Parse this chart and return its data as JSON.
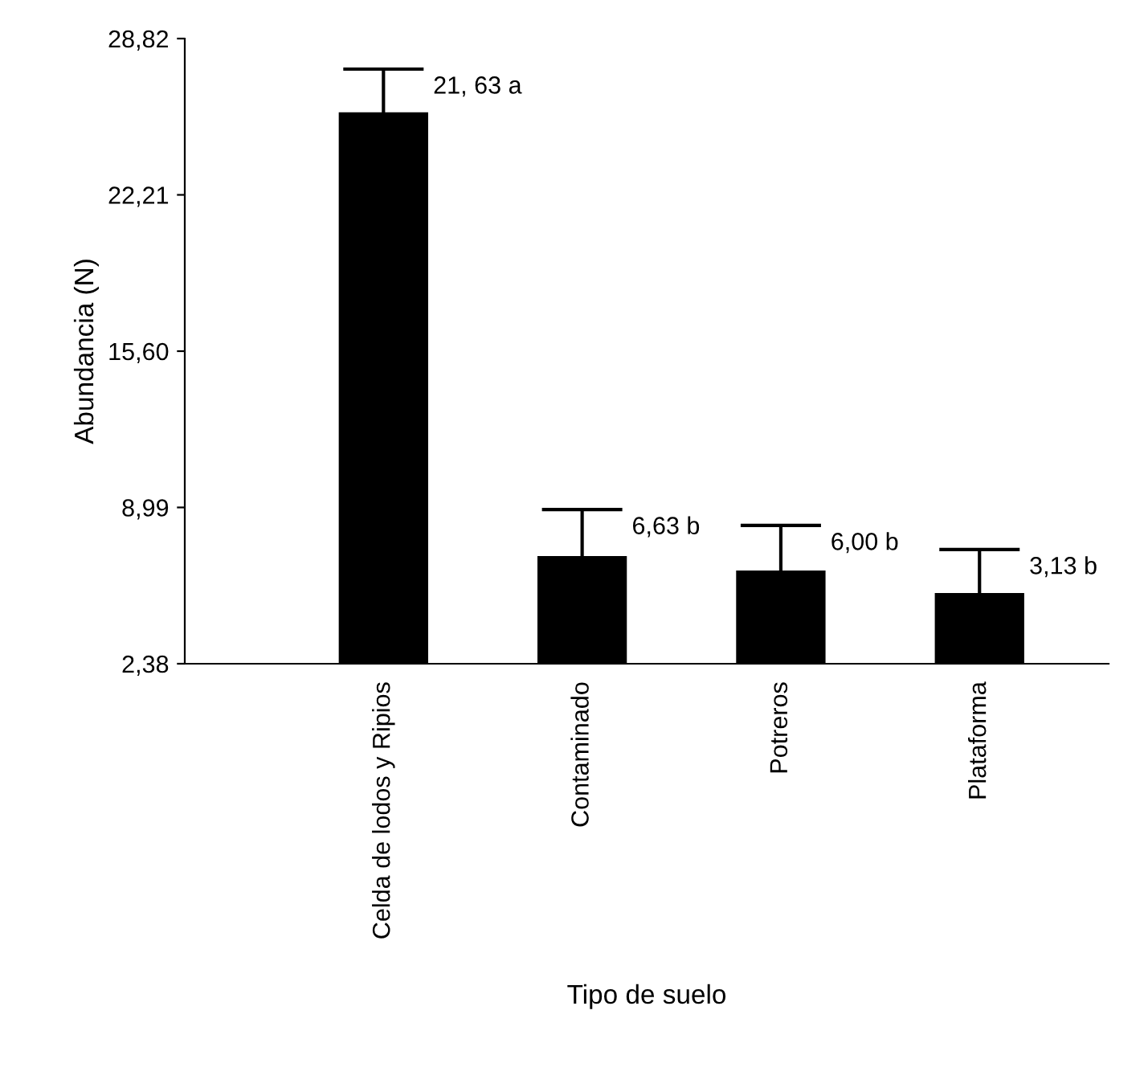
{
  "chart_data": {
    "type": "bar",
    "xlabel": "Tipo de suelo",
    "ylabel": "Abundancia (N)",
    "categories": [
      "Celda de lodos y Ripios",
      "Contaminado",
      "Potreros",
      "Plataforma"
    ],
    "values": [
      25.7,
      6.93,
      6.32,
      5.37
    ],
    "errors": [
      1.83,
      1.97,
      1.91,
      1.84
    ],
    "color": "#000000",
    "ylim": [
      2.38,
      28.82
    ],
    "yticks": [
      {
        "value": 2.38,
        "label": "2,38"
      },
      {
        "value": 8.99,
        "label": "8,99"
      },
      {
        "value": 15.6,
        "label": "15,60"
      },
      {
        "value": 22.21,
        "label": "22,21"
      },
      {
        "value": 28.82,
        "label": "28,82"
      }
    ],
    "annotations": [
      {
        "text": "21, 63 a",
        "x": "Celda de lodos y Ripios",
        "y": 27.53
      },
      {
        "text": "6,63 b",
        "x": "Contaminado",
        "y": 8.9
      },
      {
        "text": "6,00 b",
        "x": "Potreros",
        "y": 8.23
      },
      {
        "text": "3,13 b",
        "x": "Plataforma",
        "y": 7.21
      }
    ],
    "grid": false,
    "legend": false
  }
}
